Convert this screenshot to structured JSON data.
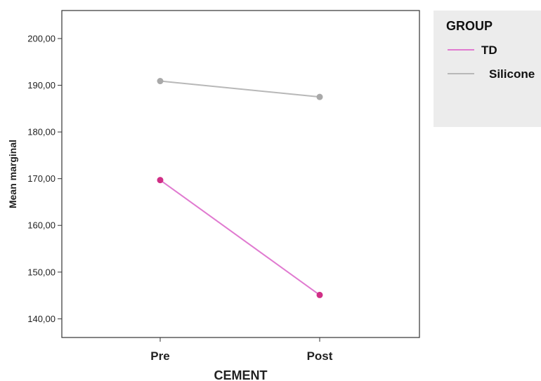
{
  "chart_data": {
    "type": "line",
    "xlabel": "CEMENT",
    "ylabel": "Mean marginal",
    "categories": [
      "Pre",
      "Post"
    ],
    "ylim": [
      136,
      206
    ],
    "yticks": [
      "140,00",
      "150,00",
      "160,00",
      "170,00",
      "180,00",
      "190,00",
      "200,00"
    ],
    "yticks_values": [
      140,
      150,
      160,
      170,
      180,
      190,
      200
    ],
    "grid": false,
    "legend": {
      "title": "GROUP",
      "placement": "right",
      "background": "#ececec"
    },
    "series": [
      {
        "name": "TD",
        "values": [
          169.7,
          145.1
        ],
        "line_color": "#e07ad0",
        "marker_color": "#d02f86"
      },
      {
        "name": "Silicone",
        "values": [
          190.9,
          187.5
        ],
        "line_color": "#b8b8b8",
        "marker_color": "#a9a9a9"
      }
    ]
  }
}
